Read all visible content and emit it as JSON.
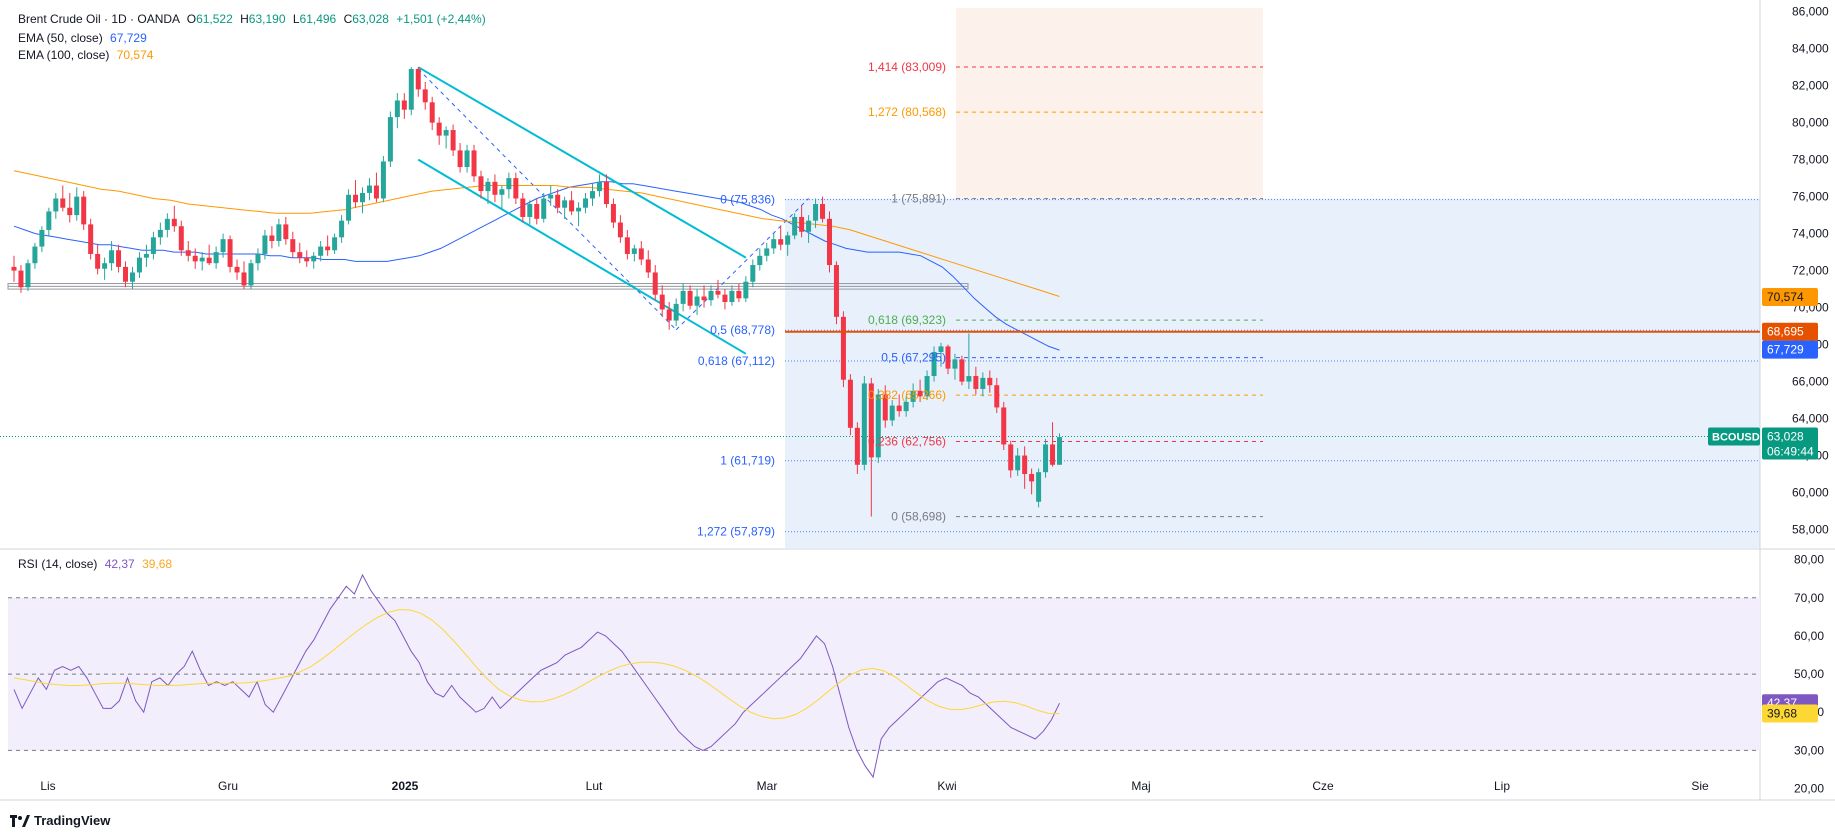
{
  "header": {
    "symbol": "Brent Crude Oil · 1D · OANDA",
    "o_label": "O",
    "o_value": "61,522",
    "h_label": "H",
    "h_value": "63,190",
    "l_label": "L",
    "l_value": "61,496",
    "c_label": "C",
    "c_value": "63,028",
    "change": "+1,501 (+2,44%)",
    "ema50_label": "EMA (50, close)",
    "ema50_value": "67,729",
    "ema100_label": "EMA (100, close)",
    "ema100_value": "70,574",
    "rsi_label": "RSI (14, close)",
    "rsi_value": "42,37",
    "rsi_ma_value": "39,68"
  },
  "colors": {
    "up": "#26a69a",
    "down": "#f23645",
    "ema50": "#2962ff",
    "ema100": "#ff9800",
    "rsi": "#7e57c2",
    "rsi_ma": "#fdd835",
    "channel": "#00bcd4",
    "level": "#e65100",
    "fib_bg": "#e8f0fc",
    "fib_ext_bg": "#fdf1ec",
    "rsi_bg": "#f3eefb",
    "badge_price": "#089981"
  },
  "price_axis": {
    "ticks": [
      "86,000",
      "84,000",
      "82,000",
      "80,000",
      "78,000",
      "76,000",
      "74,000",
      "72,000",
      "70,000",
      "68,000",
      "66,000",
      "64,000",
      "62,000",
      "60,000",
      "58,000"
    ],
    "ylim": [
      57.0,
      86.2
    ]
  },
  "rsi_axis": {
    "ticks": [
      "80,00",
      "70,00",
      "60,00",
      "50,00",
      "40,00",
      "30,00",
      "20,00"
    ],
    "ylim": [
      17,
      82
    ],
    "bands": [
      70,
      50,
      30
    ]
  },
  "x_axis": {
    "ticks": [
      {
        "label": "Lis",
        "bold": false
      },
      {
        "label": "Gru",
        "bold": false
      },
      {
        "label": "2025",
        "bold": true
      },
      {
        "label": "Lut",
        "bold": false
      },
      {
        "label": "Mar",
        "bold": false
      },
      {
        "label": "Kwi",
        "bold": false
      },
      {
        "label": "Maj",
        "bold": false
      },
      {
        "label": "Cze",
        "bold": false
      },
      {
        "label": "Lip",
        "bold": false
      },
      {
        "label": "Sie",
        "bold": false
      }
    ]
  },
  "badges": {
    "ema100": "70,574",
    "level": "68,695",
    "ema50": "67,729",
    "symbol": "BCOUSD",
    "price": "63,028",
    "countdown": "06:49:44",
    "rsi": "42,37",
    "rsi_ma": "39,68"
  },
  "fib_left": [
    {
      "label": "0 (75,836)",
      "value": 75.836,
      "color": "#2962ff"
    },
    {
      "label": "0,5 (68,778)",
      "value": 68.778,
      "color": "#2962ff"
    },
    {
      "label": "0,618 (67,112)",
      "value": 67.112,
      "color": "#2962ff"
    },
    {
      "label": "1 (61,719)",
      "value": 61.719,
      "color": "#2962ff"
    },
    {
      "label": "1,272 (57,879)",
      "value": 57.879,
      "color": "#2962ff"
    }
  ],
  "fib_right": [
    {
      "label": "1,414 (83,009)",
      "value": 83.009,
      "color": "#f23645"
    },
    {
      "label": "1,272 (80,568)",
      "value": 80.568,
      "color": "#ff9800"
    },
    {
      "label": "1 (75,891)",
      "value": 75.891,
      "color": "#787b86"
    },
    {
      "label": "0,618 (69,323)",
      "value": 69.323,
      "color": "#4caf50"
    },
    {
      "label": "0,5 (67,295)",
      "value": 67.295,
      "color": "#2962ff"
    },
    {
      "label": "0,382 (65,266)",
      "value": 65.266,
      "color": "#ff9800"
    },
    {
      "label": "0,236 (62,756)",
      "value": 62.756,
      "color": "#f23645"
    },
    {
      "label": "0 (58,698)",
      "value": 58.698,
      "color": "#787b86"
    }
  ],
  "chart_data": {
    "type": "candlestick",
    "title": "Brent Crude Oil · 1D · OANDA",
    "ylim": [
      57.0,
      86.2
    ],
    "level_line": 68.695,
    "last_close": 63.028,
    "support_zone": [
      71.0,
      71.3
    ],
    "ohlc": [
      [
        72.2,
        72.8,
        71.4,
        72.0
      ],
      [
        72.0,
        72.3,
        70.8,
        71.1
      ],
      [
        71.1,
        72.6,
        70.9,
        72.4
      ],
      [
        72.4,
        73.5,
        72.1,
        73.3
      ],
      [
        73.3,
        74.4,
        73.0,
        74.2
      ],
      [
        74.2,
        75.4,
        73.9,
        75.2
      ],
      [
        75.2,
        76.2,
        74.8,
        75.9
      ],
      [
        75.9,
        76.6,
        75.2,
        75.4
      ],
      [
        75.4,
        76.2,
        74.6,
        75.0
      ],
      [
        75.0,
        76.5,
        74.7,
        76.0
      ],
      [
        76.0,
        76.3,
        74.2,
        74.5
      ],
      [
        74.5,
        74.8,
        72.6,
        72.9
      ],
      [
        72.9,
        73.4,
        71.8,
        72.1
      ],
      [
        72.1,
        72.7,
        71.5,
        72.4
      ],
      [
        72.4,
        73.6,
        72.0,
        73.1
      ],
      [
        73.1,
        73.4,
        71.9,
        72.2
      ],
      [
        72.2,
        72.5,
        71.1,
        71.4
      ],
      [
        71.4,
        72.2,
        71.0,
        71.9
      ],
      [
        71.9,
        73.0,
        71.6,
        72.7
      ],
      [
        72.7,
        73.4,
        72.2,
        72.9
      ],
      [
        72.9,
        74.1,
        72.6,
        73.8
      ],
      [
        73.8,
        74.6,
        73.4,
        74.2
      ],
      [
        74.2,
        75.1,
        73.8,
        74.8
      ],
      [
        74.8,
        75.5,
        74.1,
        74.4
      ],
      [
        74.4,
        74.7,
        72.8,
        73.1
      ],
      [
        73.1,
        73.6,
        72.5,
        72.8
      ],
      [
        72.8,
        73.2,
        72.1,
        72.5
      ],
      [
        72.5,
        73.0,
        72.0,
        72.7
      ],
      [
        72.7,
        73.4,
        72.3,
        72.4
      ],
      [
        72.4,
        73.3,
        72.1,
        73.0
      ],
      [
        73.0,
        74.0,
        72.7,
        73.7
      ],
      [
        73.7,
        73.9,
        71.9,
        72.2
      ],
      [
        72.2,
        72.6,
        71.5,
        71.9
      ],
      [
        71.9,
        72.5,
        71.0,
        71.2
      ],
      [
        71.2,
        72.6,
        71.0,
        72.4
      ],
      [
        72.4,
        73.2,
        72.0,
        72.9
      ],
      [
        72.9,
        74.2,
        72.6,
        73.9
      ],
      [
        73.9,
        74.4,
        73.2,
        73.6
      ],
      [
        73.6,
        74.8,
        73.3,
        74.5
      ],
      [
        74.5,
        74.9,
        73.4,
        73.7
      ],
      [
        73.7,
        74.1,
        72.7,
        73.0
      ],
      [
        73.0,
        73.5,
        72.4,
        72.7
      ],
      [
        72.7,
        73.1,
        72.2,
        72.5
      ],
      [
        72.5,
        73.0,
        72.1,
        72.8
      ],
      [
        72.8,
        73.6,
        72.5,
        73.3
      ],
      [
        73.3,
        73.9,
        72.8,
        73.1
      ],
      [
        73.1,
        74.0,
        72.9,
        73.8
      ],
      [
        73.8,
        75.0,
        73.5,
        74.7
      ],
      [
        74.7,
        76.4,
        74.5,
        76.1
      ],
      [
        76.1,
        76.9,
        75.4,
        75.7
      ],
      [
        75.7,
        76.5,
        75.1,
        76.2
      ],
      [
        76.2,
        77.0,
        75.8,
        76.6
      ],
      [
        76.6,
        77.3,
        75.7,
        75.9
      ],
      [
        75.9,
        78.2,
        75.7,
        77.9
      ],
      [
        77.9,
        80.6,
        77.6,
        80.3
      ],
      [
        80.3,
        81.6,
        79.7,
        81.2
      ],
      [
        81.2,
        81.6,
        80.2,
        80.7
      ],
      [
        80.7,
        83.0,
        80.4,
        82.9
      ],
      [
        82.9,
        83.0,
        81.4,
        81.8
      ],
      [
        81.8,
        82.2,
        80.7,
        81.1
      ],
      [
        81.1,
        81.4,
        79.6,
        80.0
      ],
      [
        80.0,
        80.3,
        78.8,
        79.3
      ],
      [
        79.3,
        79.8,
        78.6,
        79.6
      ],
      [
        79.6,
        79.9,
        78.2,
        78.5
      ],
      [
        78.5,
        78.9,
        77.3,
        77.6
      ],
      [
        77.6,
        78.8,
        77.3,
        78.5
      ],
      [
        78.5,
        78.8,
        76.8,
        77.1
      ],
      [
        77.1,
        77.4,
        75.9,
        76.3
      ],
      [
        76.3,
        77.0,
        75.6,
        76.8
      ],
      [
        76.8,
        77.2,
        75.7,
        76.1
      ],
      [
        76.1,
        76.6,
        75.3,
        76.4
      ],
      [
        76.4,
        77.3,
        75.9,
        77.0
      ],
      [
        77.0,
        77.3,
        75.6,
        75.9
      ],
      [
        75.9,
        76.2,
        74.6,
        74.9
      ],
      [
        74.9,
        75.8,
        74.5,
        75.6
      ],
      [
        75.6,
        75.9,
        74.5,
        74.8
      ],
      [
        74.8,
        76.2,
        74.6,
        75.9
      ],
      [
        75.9,
        76.6,
        75.5,
        76.1
      ],
      [
        76.1,
        76.4,
        75.1,
        75.4
      ],
      [
        75.4,
        76.0,
        74.8,
        75.8
      ],
      [
        75.8,
        76.3,
        75.0,
        75.2
      ],
      [
        75.2,
        75.7,
        74.4,
        75.4
      ],
      [
        75.4,
        76.2,
        75.1,
        75.9
      ],
      [
        75.9,
        76.7,
        75.5,
        76.3
      ],
      [
        76.3,
        77.2,
        76.0,
        76.8
      ],
      [
        76.8,
        77.2,
        75.4,
        75.6
      ],
      [
        75.6,
        75.9,
        74.3,
        74.6
      ],
      [
        74.6,
        75.0,
        73.5,
        73.8
      ],
      [
        73.8,
        74.2,
        72.6,
        72.9
      ],
      [
        72.9,
        73.4,
        72.5,
        73.2
      ],
      [
        73.2,
        73.6,
        72.3,
        72.6
      ],
      [
        72.6,
        73.1,
        71.6,
        71.9
      ],
      [
        71.9,
        72.3,
        70.4,
        70.7
      ],
      [
        70.7,
        71.2,
        69.5,
        69.9
      ],
      [
        69.9,
        70.3,
        68.8,
        69.3
      ],
      [
        69.3,
        70.5,
        69.0,
        70.2
      ],
      [
        70.2,
        71.3,
        69.8,
        70.9
      ],
      [
        70.9,
        71.2,
        69.9,
        70.1
      ],
      [
        70.1,
        71.0,
        69.6,
        70.6
      ],
      [
        70.6,
        71.2,
        70.0,
        70.4
      ],
      [
        70.4,
        71.2,
        70.1,
        70.9
      ],
      [
        70.9,
        71.5,
        70.5,
        70.7
      ],
      [
        70.7,
        71.0,
        69.9,
        70.3
      ],
      [
        70.3,
        71.2,
        70.1,
        70.9
      ],
      [
        70.9,
        71.3,
        70.3,
        70.5
      ],
      [
        70.5,
        71.7,
        70.3,
        71.4
      ],
      [
        71.4,
        72.6,
        71.1,
        72.3
      ],
      [
        72.3,
        73.2,
        72.0,
        72.8
      ],
      [
        72.8,
        73.5,
        72.5,
        73.2
      ],
      [
        73.2,
        74.0,
        72.9,
        73.7
      ],
      [
        73.7,
        74.4,
        73.1,
        73.4
      ],
      [
        73.4,
        74.1,
        72.8,
        73.9
      ],
      [
        73.9,
        75.1,
        73.7,
        74.9
      ],
      [
        74.9,
        75.5,
        73.8,
        74.1
      ],
      [
        74.1,
        75.0,
        73.5,
        74.7
      ],
      [
        74.7,
        75.9,
        74.3,
        75.6
      ],
      [
        75.6,
        76.0,
        74.6,
        74.8
      ],
      [
        74.8,
        75.2,
        71.9,
        72.3
      ],
      [
        72.3,
        72.5,
        69.1,
        69.5
      ],
      [
        69.5,
        69.8,
        65.7,
        66.1
      ],
      [
        66.1,
        66.4,
        63.1,
        63.5
      ],
      [
        63.5,
        63.8,
        61.0,
        61.5
      ],
      [
        61.5,
        66.3,
        61.2,
        65.9
      ],
      [
        65.9,
        66.2,
        58.7,
        61.9
      ],
      [
        61.9,
        65.6,
        61.6,
        65.3
      ],
      [
        65.3,
        65.8,
        63.5,
        63.9
      ],
      [
        63.9,
        65.0,
        63.6,
        64.7
      ],
      [
        64.7,
        65.3,
        64.1,
        64.4
      ],
      [
        64.4,
        65.2,
        64.1,
        64.9
      ],
      [
        64.9,
        65.9,
        64.6,
        65.5
      ],
      [
        65.5,
        66.1,
        64.9,
        65.2
      ],
      [
        65.2,
        66.6,
        65.0,
        66.3
      ],
      [
        66.3,
        67.9,
        66.0,
        67.6
      ],
      [
        67.6,
        68.1,
        66.8,
        67.9
      ],
      [
        67.9,
        68.0,
        66.4,
        66.7
      ],
      [
        66.7,
        67.5,
        66.1,
        67.2
      ],
      [
        67.2,
        67.4,
        65.8,
        66.0
      ],
      [
        66.0,
        68.6,
        65.6,
        66.3
      ],
      [
        66.3,
        66.8,
        65.3,
        65.6
      ],
      [
        65.6,
        66.5,
        65.2,
        66.2
      ],
      [
        66.2,
        66.6,
        65.4,
        65.8
      ],
      [
        65.8,
        66.2,
        64.3,
        64.6
      ],
      [
        64.6,
        64.9,
        62.3,
        62.6
      ],
      [
        62.6,
        62.8,
        60.8,
        61.2
      ],
      [
        61.2,
        62.4,
        60.9,
        62.0
      ],
      [
        62.0,
        62.5,
        60.2,
        61.0
      ],
      [
        61.0,
        61.3,
        59.9,
        60.6
      ],
      [
        59.5,
        61.3,
        59.2,
        61.1
      ],
      [
        61.1,
        62.9,
        60.8,
        62.6
      ],
      [
        62.6,
        63.8,
        61.4,
        61.5
      ],
      [
        61.5,
        63.2,
        61.5,
        63.0
      ]
    ],
    "ema50": [
      74.4,
      74.2,
      74.0,
      73.9,
      73.8,
      73.7,
      73.6,
      73.5,
      73.4,
      73.4,
      73.3,
      73.2,
      73.1,
      73.1,
      73.1,
      73.0,
      73.0,
      73.0,
      72.9,
      72.9,
      72.9,
      72.9,
      72.9,
      72.9,
      72.8,
      72.8,
      72.7,
      72.7,
      72.7,
      72.6,
      72.6,
      72.6,
      72.5,
      72.5,
      72.5,
      72.5,
      72.6,
      72.7,
      72.8,
      73.0,
      73.2,
      73.5,
      73.8,
      74.1,
      74.4,
      74.7,
      75.0,
      75.3,
      75.6,
      75.9,
      76.1,
      76.3,
      76.5,
      76.6,
      76.7,
      76.8,
      76.8,
      76.7,
      76.7,
      76.6,
      76.5,
      76.4,
      76.3,
      76.2,
      76.1,
      76.0,
      75.9,
      75.8,
      75.7,
      75.5,
      75.3,
      75.0,
      74.8,
      74.5,
      74.2,
      73.9,
      73.6,
      73.4,
      73.2,
      73.1,
      73.0,
      73.0,
      73.0,
      73.0,
      72.9,
      72.8,
      72.5,
      72.2,
      71.7,
      71.1,
      70.5,
      70.0,
      69.5,
      69.1,
      68.8,
      68.5,
      68.2,
      67.9,
      67.7
    ],
    "ema100": [
      77.4,
      77.2,
      77.0,
      76.8,
      76.6,
      76.4,
      76.3,
      76.1,
      75.9,
      75.8,
      75.6,
      75.5,
      75.4,
      75.3,
      75.2,
      75.1,
      75.1,
      75.1,
      75.2,
      75.3,
      75.5,
      75.7,
      75.9,
      76.1,
      76.3,
      76.4,
      76.5,
      76.6,
      76.6,
      76.6,
      76.6,
      76.6,
      76.5,
      76.5,
      76.4,
      76.3,
      76.2,
      76.0,
      75.8,
      75.6,
      75.4,
      75.2,
      75.0,
      74.8,
      74.7,
      74.6,
      74.5,
      74.4,
      74.2,
      73.9,
      73.6,
      73.3,
      73.0,
      72.7,
      72.4,
      72.1,
      71.8,
      71.5,
      71.2,
      70.9,
      70.6
    ],
    "rsi": [
      46.0,
      41.0,
      45.0,
      49.0,
      46.0,
      51.0,
      52.0,
      51.0,
      52.0,
      49.0,
      45.0,
      41.0,
      41.0,
      43.0,
      49.0,
      43.0,
      40.0,
      48.0,
      49.0,
      47.0,
      50.0,
      52.0,
      56.0,
      51.0,
      47.0,
      48.0,
      47.0,
      48.0,
      46.0,
      44.0,
      48.0,
      42.0,
      40.0,
      44.0,
      48.0,
      52.0,
      56.0,
      59.0,
      63.0,
      67.0,
      70.0,
      73.0,
      71.0,
      76.0,
      72.0,
      69.0,
      66.0,
      64.0,
      60.0,
      56.0,
      53.0,
      48.0,
      45.0,
      44.0,
      47.0,
      44.0,
      42.0,
      40.0,
      41.0,
      44.0,
      41.0,
      43.0,
      45.0,
      47.0,
      49.0,
      51.0,
      52.0,
      53.0,
      55.0,
      56.0,
      57.0,
      59.0,
      61.0,
      60.0,
      58.0,
      56.0,
      53.0,
      50.0,
      47.0,
      44.0,
      41.0,
      38.0,
      35.0,
      33.0,
      31.0,
      30.0,
      31.0,
      33.0,
      35.0,
      37.0,
      40.0,
      42.0,
      44.0,
      46.0,
      48.0,
      50.0,
      52.0,
      54.0,
      57.0,
      60.0,
      58.0,
      52.0,
      44.0,
      36.0,
      30.0,
      26.0,
      23.0,
      33.0,
      36.0,
      38.0,
      40.0,
      42.0,
      44.0,
      46.0,
      48.0,
      49.0,
      48.0,
      47.0,
      45.0,
      44.0,
      42.0,
      40.0,
      38.0,
      36.0,
      35.0,
      34.0,
      33.0,
      35.0,
      38.0,
      42.37
    ],
    "rsi_ma": [
      49.0,
      48.5,
      48.0,
      47.5,
      47.2,
      47.0,
      47.0,
      47.2,
      47.5,
      47.6,
      47.6,
      47.4,
      47.2,
      47.0,
      47.0,
      47.1,
      47.3,
      47.5,
      47.6,
      47.6,
      47.6,
      47.7,
      48.0,
      48.4,
      48.9,
      49.5,
      50.6,
      52.0,
      54.0,
      56.2,
      58.6,
      60.9,
      63.0,
      64.8,
      66.2,
      66.9,
      66.8,
      65.9,
      64.1,
      61.6,
      58.6,
      55.3,
      51.9,
      48.8,
      46.1,
      44.3,
      43.2,
      42.7,
      42.8,
      43.5,
      44.6,
      46.0,
      47.6,
      49.2,
      50.7,
      51.9,
      52.7,
      53.1,
      53.1,
      52.8,
      52.1,
      51.0,
      49.5,
      47.7,
      45.6,
      43.5,
      41.5,
      39.9,
      38.8,
      38.3,
      38.5,
      39.4,
      41.0,
      43.1,
      45.5,
      47.8,
      49.8,
      51.1,
      51.5,
      50.9,
      49.4,
      47.3,
      45.1,
      43.1,
      41.6,
      40.8,
      40.7,
      41.2,
      42.0,
      42.7,
      42.9,
      42.5,
      41.6,
      40.5,
      39.7,
      39.68
    ]
  }
}
